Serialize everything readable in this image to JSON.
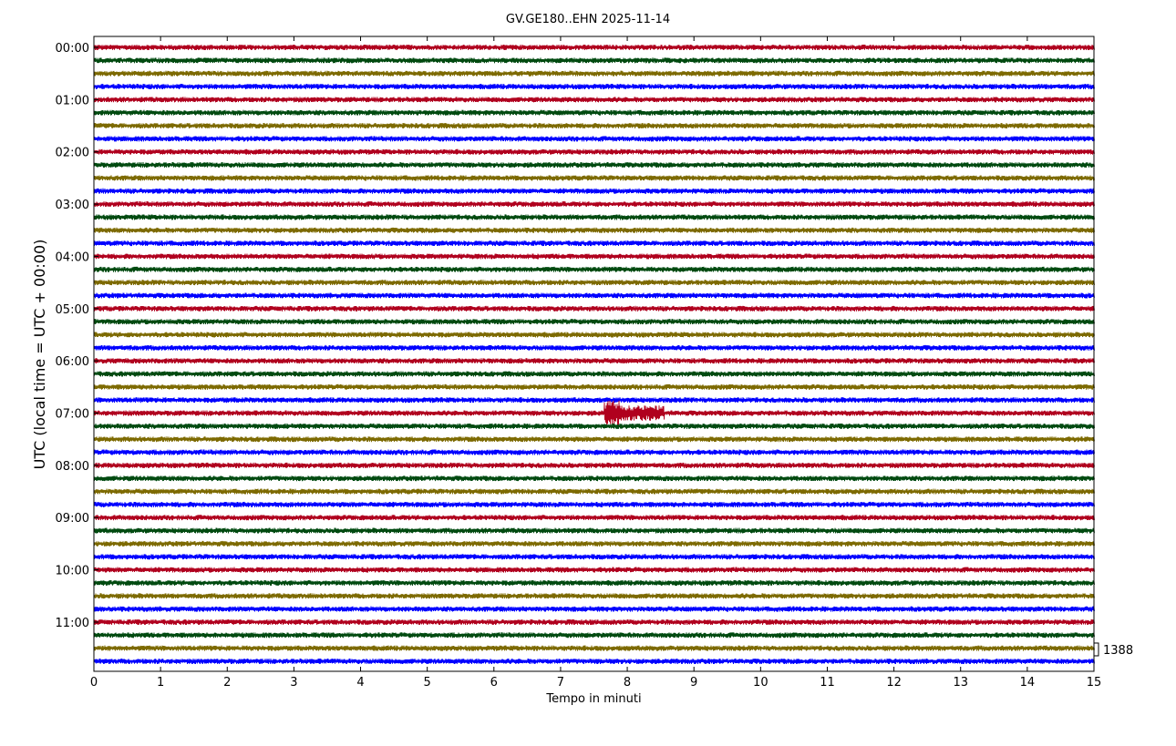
{
  "chart_data": {
    "type": "line",
    "title": "GV.GE180..EHN 2025-11-14",
    "xlabel": "Tempo in minuti",
    "ylabel": "UTC (local time = UTC + 00:00)",
    "xlim": [
      0,
      15
    ],
    "x_ticks": [
      "0",
      "1",
      "2",
      "3",
      "4",
      "5",
      "6",
      "7",
      "8",
      "9",
      "10",
      "11",
      "12",
      "13",
      "14",
      "15"
    ],
    "y_ticks": [
      "00:00",
      "01:00",
      "02:00",
      "03:00",
      "04:00",
      "05:00",
      "06:00",
      "07:00",
      "08:00",
      "09:00",
      "10:00",
      "11:00"
    ],
    "trace_interval_minutes": 15,
    "trace_count": 48,
    "trace_colors": [
      "#b0001e",
      "#004a10",
      "#7d6a00",
      "#0000ff"
    ],
    "scale_label": "1388",
    "grid": false,
    "events": [
      {
        "trace_time": "07:00",
        "start_minute": 7.65,
        "end_minute": 8.55,
        "description_color": "#b0001e"
      }
    ]
  }
}
